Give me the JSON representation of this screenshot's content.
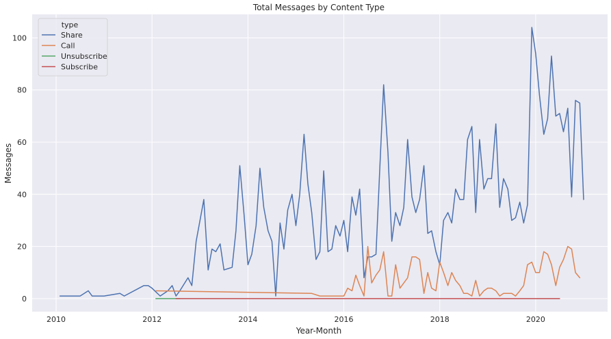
{
  "chart_data": {
    "type": "line",
    "title": "Total Messages by Content Type",
    "xlabel": "Year-Month",
    "ylabel": "Messages",
    "xlim": [
      2009.5,
      2021.5
    ],
    "ylim": [
      -5,
      109
    ],
    "x_ticks": [
      2010,
      2012,
      2014,
      2016,
      2018,
      2020
    ],
    "x_tick_labels": [
      "2010",
      "2012",
      "2014",
      "2016",
      "2018",
      "2020"
    ],
    "y_ticks": [
      0,
      20,
      40,
      60,
      80,
      100
    ],
    "y_tick_labels": [
      "0",
      "20",
      "40",
      "60",
      "80",
      "100"
    ],
    "grid": true,
    "legend": {
      "title": "type",
      "position": "top-left"
    },
    "background": "#EAEAF2",
    "series": [
      {
        "name": "Share",
        "color": "#4C72B0",
        "points": [
          [
            2010.08,
            1
          ],
          [
            2010.5,
            1
          ],
          [
            2010.67,
            3
          ],
          [
            2010.75,
            1
          ],
          [
            2010.92,
            1
          ],
          [
            2011.0,
            1
          ],
          [
            2011.33,
            2
          ],
          [
            2011.42,
            1
          ],
          [
            2011.83,
            5
          ],
          [
            2011.92,
            5
          ],
          [
            2012.0,
            4
          ],
          [
            2012.17,
            1
          ],
          [
            2012.33,
            3
          ],
          [
            2012.42,
            5
          ],
          [
            2012.5,
            1
          ],
          [
            2012.58,
            3
          ],
          [
            2012.75,
            8
          ],
          [
            2012.83,
            5
          ],
          [
            2012.92,
            22
          ],
          [
            2013.08,
            38
          ],
          [
            2013.17,
            11
          ],
          [
            2013.25,
            19
          ],
          [
            2013.33,
            18
          ],
          [
            2013.42,
            21
          ],
          [
            2013.5,
            11
          ],
          [
            2013.67,
            12
          ],
          [
            2013.75,
            26
          ],
          [
            2013.83,
            51
          ],
          [
            2013.92,
            32
          ],
          [
            2014.0,
            13
          ],
          [
            2014.08,
            17
          ],
          [
            2014.17,
            28
          ],
          [
            2014.25,
            50
          ],
          [
            2014.33,
            35
          ],
          [
            2014.42,
            26
          ],
          [
            2014.5,
            22
          ],
          [
            2014.58,
            1
          ],
          [
            2014.67,
            29
          ],
          [
            2014.75,
            19
          ],
          [
            2014.83,
            34
          ],
          [
            2014.92,
            40
          ],
          [
            2015.0,
            28
          ],
          [
            2015.08,
            40
          ],
          [
            2015.17,
            63
          ],
          [
            2015.25,
            44
          ],
          [
            2015.33,
            33
          ],
          [
            2015.42,
            15
          ],
          [
            2015.5,
            18
          ],
          [
            2015.58,
            49
          ],
          [
            2015.67,
            18
          ],
          [
            2015.75,
            19
          ],
          [
            2015.83,
            28
          ],
          [
            2015.92,
            24
          ],
          [
            2016.0,
            30
          ],
          [
            2016.08,
            18
          ],
          [
            2016.17,
            39
          ],
          [
            2016.25,
            32
          ],
          [
            2016.33,
            42
          ],
          [
            2016.42,
            8
          ],
          [
            2016.5,
            16
          ],
          [
            2016.58,
            16
          ],
          [
            2016.67,
            17
          ],
          [
            2016.75,
            50
          ],
          [
            2016.83,
            82
          ],
          [
            2016.92,
            56
          ],
          [
            2017.0,
            22
          ],
          [
            2017.08,
            33
          ],
          [
            2017.17,
            28
          ],
          [
            2017.25,
            35
          ],
          [
            2017.33,
            61
          ],
          [
            2017.42,
            39
          ],
          [
            2017.5,
            33
          ],
          [
            2017.58,
            38
          ],
          [
            2017.67,
            51
          ],
          [
            2017.75,
            25
          ],
          [
            2017.83,
            26
          ],
          [
            2017.92,
            18
          ],
          [
            2018.0,
            13
          ],
          [
            2018.08,
            30
          ],
          [
            2018.17,
            33
          ],
          [
            2018.25,
            29
          ],
          [
            2018.33,
            42
          ],
          [
            2018.42,
            38
          ],
          [
            2018.5,
            38
          ],
          [
            2018.58,
            61
          ],
          [
            2018.67,
            66
          ],
          [
            2018.75,
            33
          ],
          [
            2018.83,
            61
          ],
          [
            2018.92,
            42
          ],
          [
            2019.0,
            46
          ],
          [
            2019.08,
            46
          ],
          [
            2019.17,
            67
          ],
          [
            2019.25,
            35
          ],
          [
            2019.33,
            46
          ],
          [
            2019.42,
            42
          ],
          [
            2019.5,
            30
          ],
          [
            2019.58,
            31
          ],
          [
            2019.67,
            37
          ],
          [
            2019.75,
            29
          ],
          [
            2019.83,
            36
          ],
          [
            2019.92,
            104
          ],
          [
            2020.0,
            94
          ],
          [
            2020.08,
            78
          ],
          [
            2020.17,
            63
          ],
          [
            2020.25,
            69
          ],
          [
            2020.33,
            93
          ],
          [
            2020.42,
            70
          ],
          [
            2020.5,
            71
          ],
          [
            2020.58,
            64
          ],
          [
            2020.67,
            73
          ],
          [
            2020.75,
            39
          ],
          [
            2020.83,
            76
          ],
          [
            2020.92,
            75
          ],
          [
            2021.0,
            38
          ]
        ]
      },
      {
        "name": "Call",
        "color": "#DD8452",
        "points": [
          [
            2012.08,
            3
          ],
          [
            2015.33,
            2
          ],
          [
            2015.5,
            1
          ],
          [
            2016.0,
            1
          ],
          [
            2016.08,
            4
          ],
          [
            2016.17,
            3
          ],
          [
            2016.25,
            9
          ],
          [
            2016.33,
            5
          ],
          [
            2016.42,
            1
          ],
          [
            2016.5,
            20
          ],
          [
            2016.58,
            6
          ],
          [
            2016.67,
            9
          ],
          [
            2016.75,
            11
          ],
          [
            2016.83,
            18
          ],
          [
            2016.92,
            1
          ],
          [
            2017.0,
            1
          ],
          [
            2017.08,
            13
          ],
          [
            2017.17,
            4
          ],
          [
            2017.25,
            6
          ],
          [
            2017.33,
            8
          ],
          [
            2017.42,
            16
          ],
          [
            2017.5,
            16
          ],
          [
            2017.58,
            15
          ],
          [
            2017.67,
            2
          ],
          [
            2017.75,
            10
          ],
          [
            2017.83,
            4
          ],
          [
            2017.92,
            3
          ],
          [
            2018.0,
            14
          ],
          [
            2018.08,
            10
          ],
          [
            2018.17,
            5
          ],
          [
            2018.25,
            10
          ],
          [
            2018.33,
            7
          ],
          [
            2018.42,
            5
          ],
          [
            2018.5,
            2
          ],
          [
            2018.58,
            2
          ],
          [
            2018.67,
            1
          ],
          [
            2018.75,
            7
          ],
          [
            2018.83,
            1
          ],
          [
            2018.92,
            3
          ],
          [
            2019.0,
            4
          ],
          [
            2019.08,
            4
          ],
          [
            2019.17,
            3
          ],
          [
            2019.25,
            1
          ],
          [
            2019.33,
            2
          ],
          [
            2019.42,
            2
          ],
          [
            2019.5,
            2
          ],
          [
            2019.58,
            1
          ],
          [
            2019.67,
            3
          ],
          [
            2019.75,
            5
          ],
          [
            2019.83,
            13
          ],
          [
            2019.92,
            14
          ],
          [
            2020.0,
            10
          ],
          [
            2020.08,
            10
          ],
          [
            2020.17,
            18
          ],
          [
            2020.25,
            17
          ],
          [
            2020.33,
            13
          ],
          [
            2020.42,
            5
          ],
          [
            2020.5,
            12
          ],
          [
            2020.58,
            15
          ],
          [
            2020.67,
            20
          ],
          [
            2020.75,
            19
          ],
          [
            2020.83,
            10
          ],
          [
            2020.92,
            8
          ]
        ]
      },
      {
        "name": "Unsubscribe",
        "color": "#55A868",
        "points": [
          [
            2012.08,
            0
          ],
          [
            2012.58,
            0
          ]
        ]
      },
      {
        "name": "Subscribe",
        "color": "#C44E52",
        "points": [
          [
            2012.5,
            0
          ],
          [
            2020.5,
            0
          ]
        ]
      }
    ]
  }
}
